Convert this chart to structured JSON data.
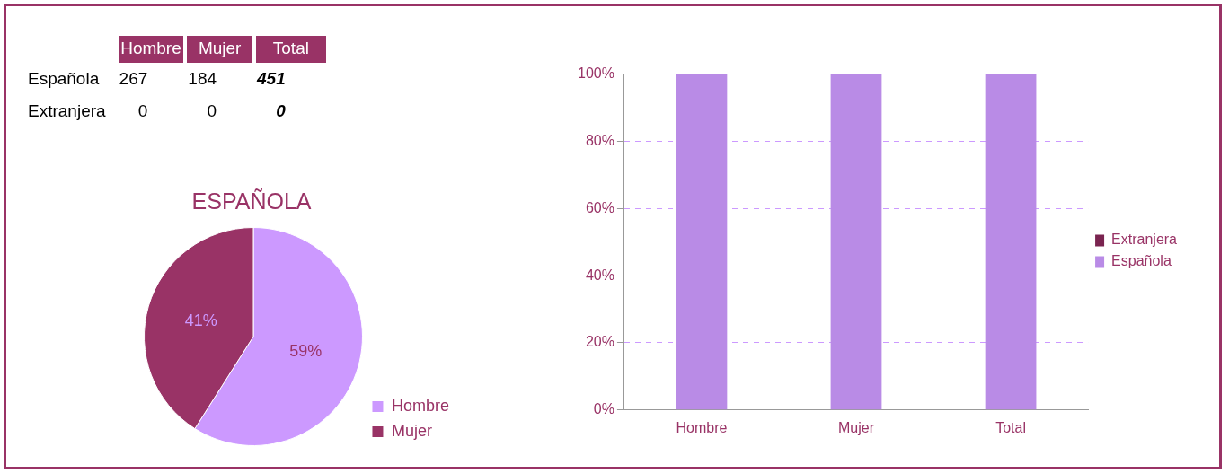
{
  "chart_data": [
    {
      "type": "other",
      "categories": [
        "Hombre",
        "Mujer",
        "Total"
      ],
      "series": [
        {
          "name": "Española",
          "values": [
            267,
            184,
            451
          ]
        },
        {
          "name": "Extranjera",
          "values": [
            0,
            0,
            0
          ]
        }
      ],
      "data_labels": true
    },
    {
      "type": "pie",
      "title": "ESPAÑOLA",
      "categories": [
        "Hombre",
        "Mujer"
      ],
      "values": [
        59,
        41
      ],
      "colors": [
        "#cc99ff",
        "#993366"
      ],
      "value_labels": [
        "59%",
        "41%"
      ],
      "legend": "bottom right"
    },
    {
      "type": "bar",
      "stacked": true,
      "categories": [
        "Hombre",
        "Mujer",
        "Total"
      ],
      "series": [
        {
          "name": "Española",
          "color": "#b98be6",
          "values": [
            100,
            100,
            100
          ]
        },
        {
          "name": "Extranjera",
          "color": "#7a2450",
          "values": [
            0,
            0,
            0
          ]
        }
      ],
      "ylim": [
        0,
        100
      ],
      "yticks": [
        {
          "value": 0,
          "label": "0%"
        },
        {
          "value": 20,
          "label": "20%"
        },
        {
          "value": 40,
          "label": "40%"
        },
        {
          "value": 60,
          "label": "60%"
        },
        {
          "value": 80,
          "label": "80%"
        },
        {
          "value": 100,
          "label": "100%"
        }
      ],
      "grid": "y",
      "legend": "right"
    }
  ]
}
